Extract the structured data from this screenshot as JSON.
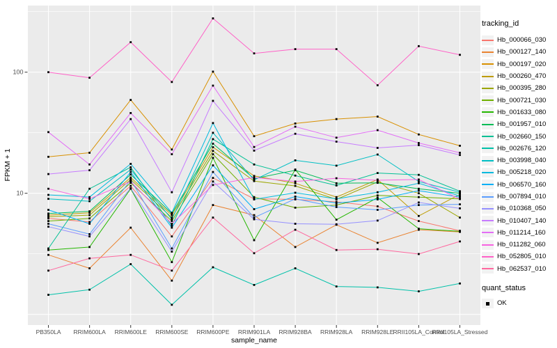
{
  "figure": {
    "y_axis": {
      "title": "FPKM + 1",
      "tick_labels": [
        "100",
        "10"
      ],
      "tick_values": [
        100,
        10
      ]
    },
    "x_axis": {
      "title": "sample_name"
    },
    "legend": {
      "tracking_title": "tracking_id",
      "quant_title": "quant_status",
      "quant_items": [
        {
          "label": "OK",
          "marker": "black-square"
        }
      ]
    },
    "panel_color": "#EBEBEB",
    "gridline_color": "#FFFFFF",
    "tick_text_color": "#4D4D4D",
    "point_color": "#000000"
  },
  "chart_data": {
    "type": "line",
    "title": "",
    "xlabel": "sample_name",
    "ylabel": "FPKM + 1",
    "yscale": "log10",
    "ylim": [
      0.87,
      355
    ],
    "y_major_gridlines": [
      1,
      10,
      100
    ],
    "y_minor_gridlines": [
      3.162,
      31.62,
      316.2
    ],
    "grid": true,
    "legend_position": "right",
    "legend_title": "tracking_id",
    "point_marker": "black-square",
    "x": [
      "PB350LA",
      "RRIM600LA",
      "RRIM600LE",
      "RRIM600SE",
      "RRIM600PE",
      "RRIM901LA",
      "RRIM928BA",
      "RRIM928LA",
      "RRIM928LE",
      "RRII105LA_Control",
      "RRII105LA_Stressed"
    ],
    "series": [
      {
        "name": "Hb_000066_030",
        "color": "#F8766D",
        "values": [
          6.2,
          5.8,
          11.5,
          4.4,
          13.4,
          9.0,
          8.9,
          8.5,
          7.8,
          5.9,
          4.9
        ]
      },
      {
        "name": "Hb_000127_140",
        "color": "#EA8331",
        "values": [
          3.1,
          2.4,
          5.2,
          1.9,
          8.0,
          6.6,
          3.6,
          5.5,
          3.9,
          5.0,
          4.8
        ]
      },
      {
        "name": "Hb_000197_020",
        "color": "#D89000",
        "values": [
          20,
          21.6,
          59,
          23,
          101,
          29.6,
          37.7,
          41,
          43,
          30.6,
          24.7
        ]
      },
      {
        "name": "Hb_000260_470",
        "color": "#BE9C00",
        "values": [
          6.6,
          6.9,
          13.5,
          6.6,
          24,
          13.9,
          12.1,
          9.3,
          13.0,
          6.5,
          9.8
        ]
      },
      {
        "name": "Hb_000395_280",
        "color": "#9CA700",
        "values": [
          6.4,
          6.6,
          13.0,
          6.3,
          22.4,
          12.6,
          11.5,
          8.9,
          12.4,
          10.0,
          6.3
        ]
      },
      {
        "name": "Hb_000721_030",
        "color": "#6FB000",
        "values": [
          5.9,
          6.2,
          12.2,
          5.9,
          21,
          9.3,
          7.6,
          8.0,
          9.6,
          9.3,
          9.0
        ]
      },
      {
        "name": "Hb_001633_080",
        "color": "#24B700",
        "values": [
          3.4,
          3.6,
          10.9,
          2.7,
          19.6,
          4.1,
          15.7,
          6.05,
          9.2,
          5.1,
          4.85
        ]
      },
      {
        "name": "Hb_001957_010",
        "color": "#00BC56",
        "values": [
          6.8,
          7.1,
          14.3,
          6.8,
          25.7,
          13.2,
          15.5,
          12.1,
          12.2,
          10.9,
          10.0
        ]
      },
      {
        "name": "Hb_002660_150",
        "color": "#00C094",
        "values": [
          3.5,
          10.9,
          16.4,
          5.4,
          28,
          17.3,
          14.0,
          11.6,
          14.7,
          14.2,
          10.4
        ]
      },
      {
        "name": "Hb_002676_120",
        "color": "#00C1A9",
        "values": [
          1.45,
          1.6,
          2.6,
          1.2,
          2.45,
          1.75,
          2.4,
          1.7,
          1.67,
          1.55,
          1.8
        ]
      },
      {
        "name": "Hb_003998_040",
        "color": "#00BFC4",
        "values": [
          9.0,
          8.6,
          15.7,
          6.1,
          31.6,
          12.9,
          18.7,
          16.9,
          20.9,
          12.5,
          10.2
        ]
      },
      {
        "name": "Hb_005218_020",
        "color": "#00BADE",
        "values": [
          9.7,
          9.3,
          17.5,
          6.9,
          38,
          8.9,
          10.1,
          9.0,
          10.2,
          12.1,
          9.5
        ]
      },
      {
        "name": "Hb_006570_160",
        "color": "#00B0F6",
        "values": [
          7.3,
          5.6,
          15.0,
          5.2,
          17,
          7.4,
          9.4,
          8.3,
          8.9,
          10.5,
          9.3
        ]
      },
      {
        "name": "Hb_007894_010",
        "color": "#5A9DFF",
        "values": [
          5.6,
          4.6,
          12.9,
          3.5,
          15,
          6.3,
          9.0,
          7.7,
          7.3,
          8.0,
          8.1
        ]
      },
      {
        "name": "Hb_010368_050",
        "color": "#9590FF",
        "values": [
          5.3,
          4.4,
          11.0,
          3.3,
          12.5,
          6.1,
          5.6,
          5.55,
          5.95,
          8.4,
          7.5
        ]
      },
      {
        "name": "Hb_010407_140",
        "color": "#C77CFF",
        "values": [
          14.4,
          15.5,
          41,
          10.2,
          58,
          22.5,
          31,
          26.7,
          23.7,
          25,
          20.7
        ]
      },
      {
        "name": "Hb_011214_160",
        "color": "#E36EF6",
        "values": [
          32,
          17.3,
          46,
          21,
          77.5,
          24.1,
          35.5,
          28.8,
          33.2,
          26,
          21.6
        ]
      },
      {
        "name": "Hb_011282_060",
        "color": "#F763E1",
        "values": [
          10.9,
          9.0,
          12.5,
          5.6,
          11.7,
          13.5,
          12.5,
          13.3,
          12.8,
          13.0,
          8.95
        ]
      },
      {
        "name": "Hb_052805_010",
        "color": "#FF61C7",
        "values": [
          100,
          90,
          177,
          83,
          278,
          143,
          155,
          155,
          78,
          164,
          139
        ]
      },
      {
        "name": "Hb_062537_010",
        "color": "#FF689F",
        "values": [
          2.3,
          2.9,
          3.1,
          2.3,
          6.3,
          3.2,
          5.0,
          3.4,
          3.45,
          3.15,
          4.0
        ]
      }
    ]
  }
}
